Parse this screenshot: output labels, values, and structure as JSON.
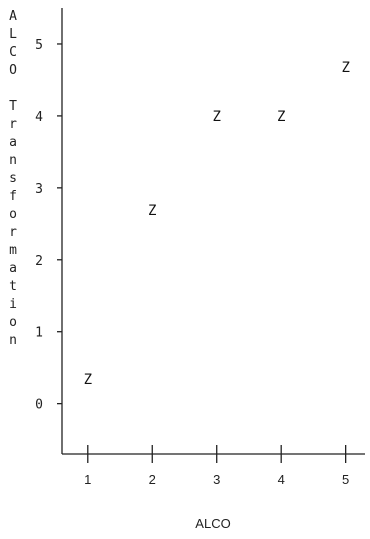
{
  "chart_data": {
    "type": "scatter",
    "xlabel": "ALCO",
    "ylabel": "ALCO Transformation",
    "marker": "Z",
    "x_ticks": [
      "1",
      "2",
      "3",
      "4",
      "5"
    ],
    "y_ticks": [
      "0",
      "1",
      "2",
      "3",
      "4",
      "5"
    ],
    "xlim": [
      0.6,
      5.3
    ],
    "ylim": [
      -0.7,
      5.5
    ],
    "grid": false,
    "points": [
      {
        "x": 1,
        "y": 0.34
      },
      {
        "x": 2,
        "y": 2.69
      },
      {
        "x": 3,
        "y": 4.0
      },
      {
        "x": 4,
        "y": 4.0
      },
      {
        "x": 5,
        "y": 4.68
      }
    ]
  }
}
